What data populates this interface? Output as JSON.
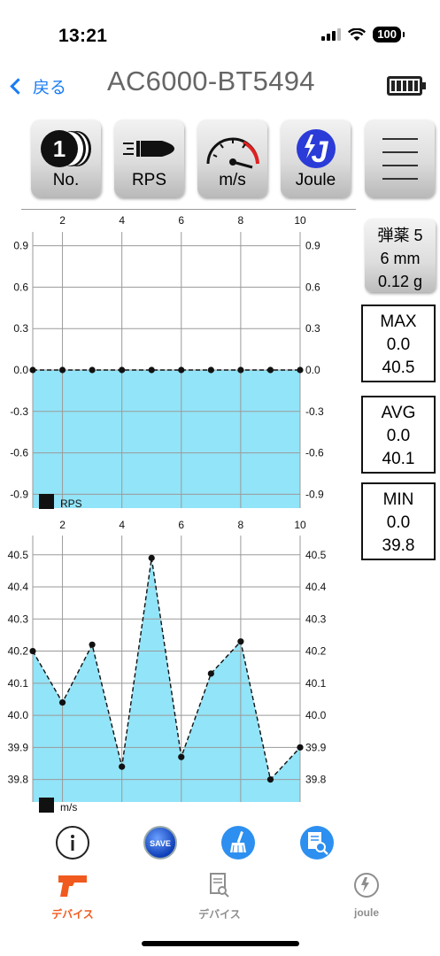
{
  "status_bar": {
    "time": "13:21",
    "battery_level": "100"
  },
  "nav": {
    "back_label": "戻る",
    "title": "AC6000-BT5494"
  },
  "toolbar": {
    "buttons": [
      {
        "label": "No.",
        "icon": "coin-stack-icon"
      },
      {
        "label": "RPS",
        "icon": "bullet-icon"
      },
      {
        "label": "m/s",
        "icon": "speedometer-icon"
      },
      {
        "label": "Joule",
        "icon": "joule-icon"
      },
      {
        "label": "",
        "icon": "menu-icon"
      }
    ]
  },
  "ammo": {
    "line1": "弾薬 5",
    "line2": "6 mm",
    "line3": "0.12 g"
  },
  "stats": {
    "max": {
      "label": "MAX",
      "rps": "0.0",
      "ms": "40.5"
    },
    "avg": {
      "label": "AVG",
      "rps": "0.0",
      "ms": "40.1"
    },
    "min": {
      "label": "MIN",
      "rps": "0.0",
      "ms": "39.8"
    }
  },
  "chart_data": [
    {
      "type": "area",
      "legend": "RPS",
      "x": [
        1,
        2,
        3,
        4,
        5,
        6,
        7,
        8,
        9,
        10
      ],
      "x_ticks": [
        "2",
        "4",
        "6",
        "8",
        "10"
      ],
      "y": [
        0,
        0,
        0,
        0,
        0,
        0,
        0,
        0,
        0,
        0
      ],
      "y_ticks": [
        "0.9",
        "0.6",
        "0.3",
        "0.0",
        "-0.3",
        "-0.6",
        "-0.9"
      ],
      "ylim": [
        -1.0,
        1.0
      ],
      "xlim": [
        1,
        10
      ],
      "fill_color": "#92e4f8",
      "line_style": "dashed",
      "grid": true
    },
    {
      "type": "area",
      "legend": "m/s",
      "x": [
        1,
        2,
        3,
        4,
        5,
        6,
        7,
        8,
        9,
        10
      ],
      "x_ticks": [
        "2",
        "4",
        "6",
        "8",
        "10"
      ],
      "y": [
        40.2,
        40.04,
        40.22,
        39.84,
        40.49,
        39.87,
        40.13,
        40.23,
        39.8,
        39.9
      ],
      "y_ticks": [
        "40.5",
        "40.4",
        "40.3",
        "40.2",
        "40.1",
        "40.0",
        "39.9",
        "39.8"
      ],
      "ylim": [
        39.73,
        40.56
      ],
      "xlim": [
        1,
        10
      ],
      "fill_color": "#92e4f8",
      "line_style": "dashed",
      "grid": true
    }
  ],
  "actions": [
    {
      "name": "info",
      "icon": "info-icon"
    },
    {
      "name": "save",
      "icon": "save-icon",
      "label": "SAVE"
    },
    {
      "name": "clear",
      "icon": "broom-icon"
    },
    {
      "name": "history",
      "icon": "document-search-icon"
    }
  ],
  "tabs": [
    {
      "label": "デバイス",
      "icon": "pistol-icon",
      "active": true
    },
    {
      "label": "デバイス",
      "icon": "document-search-icon",
      "active": false
    },
    {
      "label": "joule",
      "icon": "joule-icon",
      "active": false
    }
  ],
  "colors": {
    "accent": "#1a7cf5",
    "active_tab": "#f05a1e",
    "inactive_tab": "#8e8e8e",
    "chart_fill": "#92e4f8"
  }
}
